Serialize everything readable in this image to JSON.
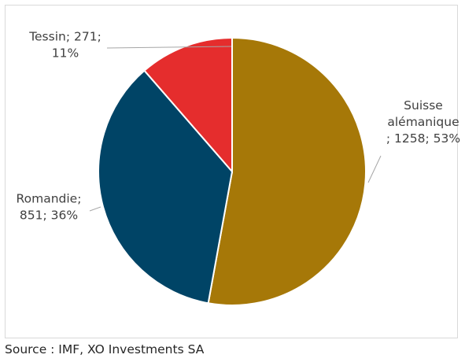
{
  "chart_data": {
    "type": "pie",
    "title": "",
    "slices": [
      {
        "category": "Suisse alémanique",
        "value": 1258,
        "percent": 53,
        "color": "#A67808",
        "label_lines": [
          "Suisse",
          "alémanique",
          "; 1258; 53%"
        ]
      },
      {
        "category": "Romandie",
        "value": 851,
        "percent": 36,
        "color": "#004466",
        "label_lines": [
          "Romandie;",
          "851; 36%"
        ]
      },
      {
        "category": "Tessin",
        "value": 271,
        "percent": 11,
        "color": "#E52D2D",
        "label_lines": [
          "Tessin; 271;",
          "11%"
        ]
      }
    ],
    "legend": "none",
    "data_labels": "outside with leader lines"
  },
  "source": "Source : IMF, XO Investments SA"
}
